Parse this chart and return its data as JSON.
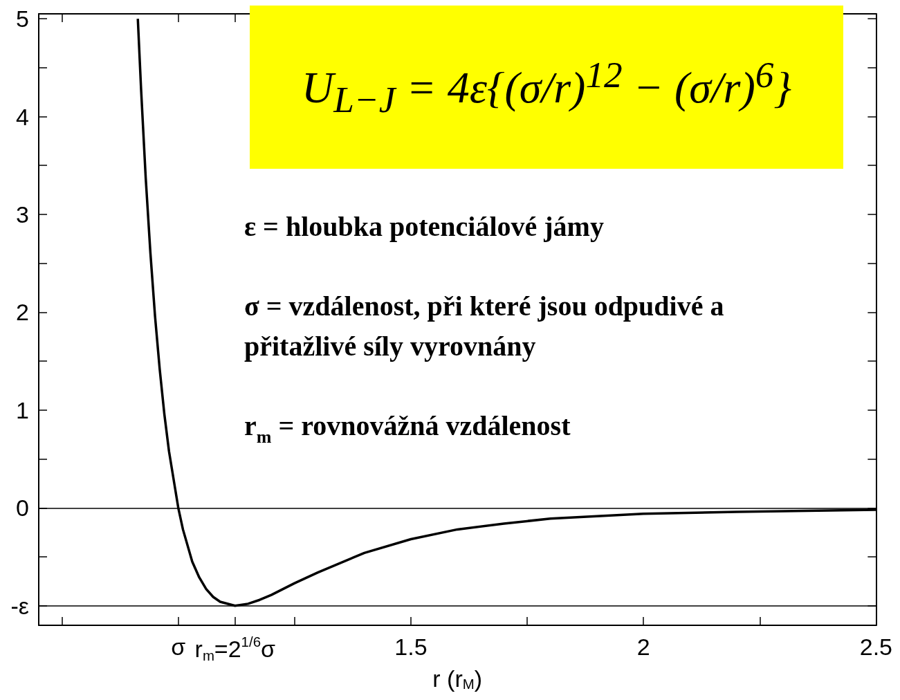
{
  "chart_data": {
    "type": "line",
    "xlabel": "r (r$_{M}$)",
    "x": [
      0.913,
      0.92,
      0.93,
      0.94,
      0.95,
      0.96,
      0.97,
      0.98,
      1.0,
      1.01,
      1.03,
      1.045,
      1.06,
      1.075,
      1.09,
      1.122,
      1.15,
      1.175,
      1.2,
      1.25,
      1.3,
      1.4,
      1.5,
      1.6,
      1.7,
      1.8,
      2.0,
      2.2,
      2.5
    ],
    "series": [
      {
        "color": "#000000",
        "values": [
          5.0,
          4.28,
          3.37,
          2.61,
          1.96,
          1.42,
          0.96,
          0.58,
          0,
          -0.22,
          -0.55,
          -0.71,
          -0.83,
          -0.91,
          -0.96,
          -1.0,
          -0.98,
          -0.94,
          -0.89,
          -0.77,
          -0.66,
          -0.46,
          -0.32,
          -0.22,
          -0.16,
          -0.11,
          -0.06,
          -0.04,
          -0.02
        ]
      }
    ],
    "xlim": [
      0.7,
      2.5
    ],
    "xticks": [
      {
        "value": 0.75,
        "label": null
      },
      {
        "value": 1,
        "label": "σ"
      },
      {
        "value": 1.122,
        "label": "r$_{m}$=2$^{1/6}$σ"
      },
      {
        "value": 1.25,
        "label": null
      },
      1.5,
      {
        "value": 1.75,
        "label": null
      },
      2,
      {
        "value": 2.25,
        "label": null
      },
      2.5
    ],
    "ylim": [
      -1.2,
      5.05
    ],
    "yticks": [
      {
        "value": -1,
        "label": "-ε"
      },
      {
        "value": -0.5,
        "label": null
      },
      0,
      {
        "value": 0.5,
        "label": null
      },
      1,
      {
        "value": 1.5,
        "label": null
      },
      2,
      {
        "value": 2.5,
        "label": null
      },
      3,
      {
        "value": 3.5,
        "label": null
      },
      4,
      {
        "value": 4.5,
        "label": null
      },
      5
    ],
    "ref_lines": [
      {
        "axis": "y",
        "value": 0
      },
      {
        "axis": "y",
        "value": -1
      }
    ],
    "annotations": [
      "U$_{L−J}$ = 4ε{(σ/r)$^{12}$ − (σ/r)$^{6}$}",
      "ε = hloubka potenciálové jámy",
      "σ = vzdálenost, při které jsou odpudivé a\npřitažlivé síly vyrovnány",
      "r$_{m}$ = rovnovážná vzdálenost"
    ],
    "grid": false,
    "marker": "none",
    "line_style": "solid"
  }
}
